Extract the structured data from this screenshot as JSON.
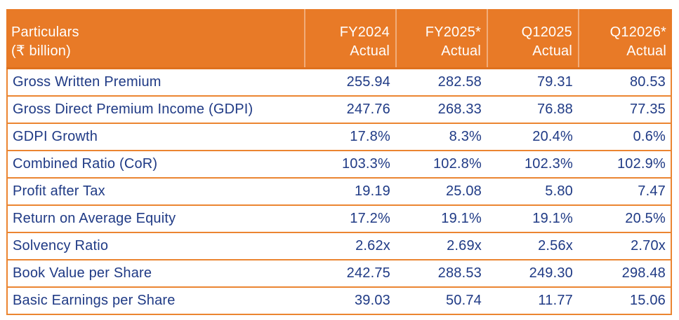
{
  "colors": {
    "header_bg": "#E87A27",
    "header_text": "#FFFFFF",
    "border_orange": "#EB8531",
    "value_text_navy": "#1F3A85",
    "page_bg": "#FFFFFF"
  },
  "table": {
    "header": {
      "particulars_line1": "Particulars",
      "particulars_line2": "(₹ billion)",
      "columns": [
        {
          "line1": "FY2024",
          "line2": "Actual"
        },
        {
          "line1": "FY2025*",
          "line2": "Actual"
        },
        {
          "line1": "Q12025",
          "line2": "Actual"
        },
        {
          "line1": "Q12026*",
          "line2": "Actual"
        }
      ]
    },
    "rows": [
      {
        "label": "Gross Written Premium",
        "values": [
          "255.94",
          "282.58",
          "79.31",
          "80.53"
        ]
      },
      {
        "label": "Gross Direct Premium Income (GDPI)",
        "values": [
          "247.76",
          "268.33",
          "76.88",
          "77.35"
        ]
      },
      {
        "label": "GDPI Growth",
        "values": [
          "17.8%",
          "8.3%",
          "20.4%",
          "0.6%"
        ]
      },
      {
        "label": "Combined Ratio (CoR)",
        "values": [
          "103.3%",
          "102.8%",
          "102.3%",
          "102.9%"
        ]
      },
      {
        "label": "Profit after Tax",
        "values": [
          "19.19",
          "25.08",
          "5.80",
          "7.47"
        ]
      },
      {
        "label": "Return on Average Equity",
        "values": [
          "17.2%",
          "19.1%",
          "19.1%",
          "20.5%"
        ]
      },
      {
        "label": "Solvency Ratio",
        "values": [
          "2.62x",
          "2.69x",
          "2.56x",
          "2.70x"
        ]
      },
      {
        "label": "Book Value per Share",
        "values": [
          "242.75",
          "288.53",
          "249.30",
          "298.48"
        ]
      },
      {
        "label": "Basic Earnings per Share",
        "values": [
          "39.03",
          "50.74",
          "11.77",
          "15.06"
        ]
      }
    ]
  },
  "chart_data": {
    "type": "table",
    "title": "Particulars (₹ billion)",
    "columns": [
      "Particulars (₹ billion)",
      "FY2024 Actual",
      "FY2025* Actual",
      "Q12025 Actual",
      "Q12026* Actual"
    ],
    "rows": [
      [
        "Gross Written Premium",
        "255.94",
        "282.58",
        "79.31",
        "80.53"
      ],
      [
        "Gross Direct Premium Income (GDPI)",
        "247.76",
        "268.33",
        "76.88",
        "77.35"
      ],
      [
        "GDPI Growth",
        "17.8%",
        "8.3%",
        "20.4%",
        "0.6%"
      ],
      [
        "Combined Ratio (CoR)",
        "103.3%",
        "102.8%",
        "102.3%",
        "102.9%"
      ],
      [
        "Profit after Tax",
        "19.19",
        "25.08",
        "5.80",
        "7.47"
      ],
      [
        "Return on Average Equity",
        "17.2%",
        "19.1%",
        "19.1%",
        "20.5%"
      ],
      [
        "Solvency Ratio",
        "2.62x",
        "2.69x",
        "2.56x",
        "2.70x"
      ],
      [
        "Book Value per Share",
        "242.75",
        "288.53",
        "249.30",
        "298.48"
      ],
      [
        "Basic Earnings per Share",
        "39.03",
        "50.74",
        "11.77",
        "15.06"
      ]
    ]
  }
}
